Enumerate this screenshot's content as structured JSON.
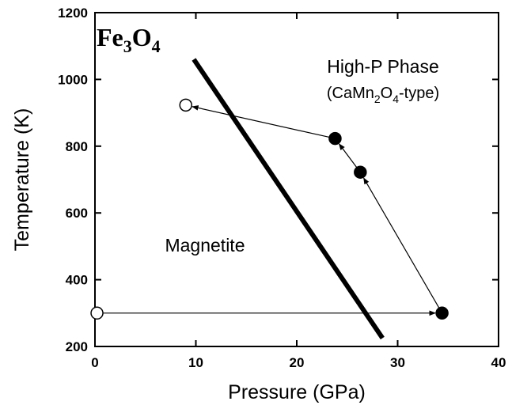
{
  "chart_data": {
    "type": "scatter",
    "title": "",
    "formula": {
      "base1": "Fe",
      "sub1": "3",
      "base2": "O",
      "sub2": "4"
    },
    "xlabel": "Pressure (GPa)",
    "ylabel": "Temperature (K)",
    "xlim": [
      0,
      40
    ],
    "ylim": [
      200,
      1200
    ],
    "xticks": [
      0,
      10,
      20,
      30,
      40
    ],
    "yticks": [
      200,
      400,
      600,
      800,
      1000,
      1200
    ],
    "grid": false,
    "phase_boundary": {
      "x": [
        9.8,
        28.5
      ],
      "y": [
        1060,
        225
      ]
    },
    "regions": {
      "high_p": {
        "name": "High-P Phase",
        "type_pre": "(CaMn",
        "type_sub1": "2",
        "type_mid": "O",
        "type_sub2": "4",
        "type_post": "-type)"
      },
      "low_p": {
        "name": "Magnetite"
      }
    },
    "points": [
      {
        "x": 0.2,
        "y": 300,
        "filled": false
      },
      {
        "x": 34.4,
        "y": 300,
        "filled": true
      },
      {
        "x": 26.3,
        "y": 722,
        "filled": true
      },
      {
        "x": 23.8,
        "y": 823,
        "filled": true
      },
      {
        "x": 9.0,
        "y": 923,
        "filled": false
      }
    ],
    "arrows": [
      {
        "from": [
          0.2,
          300
        ],
        "to": [
          34.4,
          300
        ]
      },
      {
        "from": [
          34.4,
          300
        ],
        "to": [
          26.3,
          722
        ]
      },
      {
        "from": [
          26.3,
          722
        ],
        "to": [
          23.8,
          823
        ]
      },
      {
        "from": [
          23.8,
          823
        ],
        "to": [
          9.0,
          923
        ]
      }
    ]
  }
}
